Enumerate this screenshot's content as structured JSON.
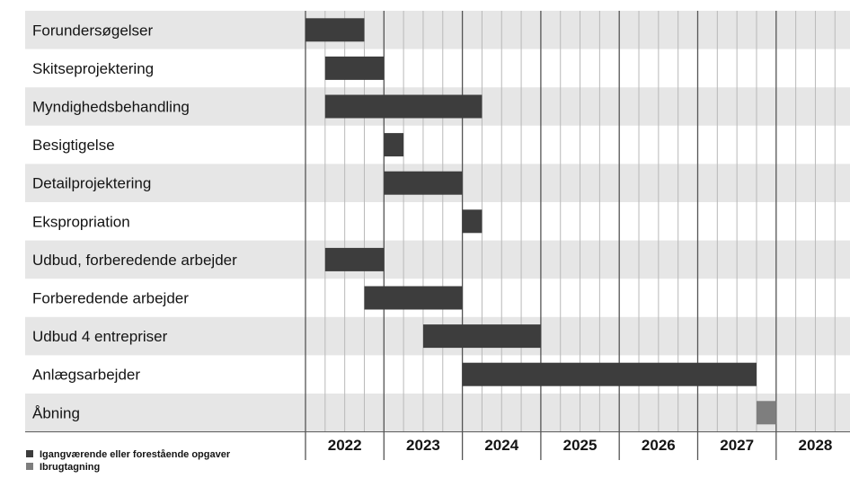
{
  "chart_data": {
    "type": "gantt",
    "years": [
      "2022",
      "2023",
      "2024",
      "2025",
      "2026",
      "2027",
      "2028"
    ],
    "tasks": [
      {
        "name": "Forundersøgelser",
        "start": 2022.0,
        "end": 2022.75,
        "kind": "current"
      },
      {
        "name": "Skitseprojektering",
        "start": 2022.25,
        "end": 2023.0,
        "kind": "current"
      },
      {
        "name": "Myndighedsbehandling",
        "start": 2022.25,
        "end": 2024.25,
        "kind": "current"
      },
      {
        "name": "Besigtigelse",
        "start": 2023.0,
        "end": 2023.25,
        "kind": "current"
      },
      {
        "name": "Detailprojektering",
        "start": 2023.0,
        "end": 2024.0,
        "kind": "current"
      },
      {
        "name": "Ekspropriation",
        "start": 2024.0,
        "end": 2024.25,
        "kind": "current"
      },
      {
        "name": "Udbud, forberedende arbejder",
        "start": 2022.25,
        "end": 2023.0,
        "kind": "current"
      },
      {
        "name": "Forberedende arbejder",
        "start": 2022.75,
        "end": 2024.0,
        "kind": "current"
      },
      {
        "name": "Udbud 4 entrepriser",
        "start": 2023.5,
        "end": 2025.0,
        "kind": "current"
      },
      {
        "name": "Anlægsarbejder",
        "start": 2024.0,
        "end": 2027.75,
        "kind": "current"
      },
      {
        "name": "Åbning",
        "start": 2027.75,
        "end": 2028.0,
        "kind": "opening"
      }
    ],
    "legend": [
      {
        "label": "Igangværende eller forestående opgaver",
        "color": "#3d3d3d"
      },
      {
        "label": "Ibrugtagning",
        "color": "#7e7e7e"
      }
    ],
    "colors": {
      "current": "#3d3d3d",
      "opening": "#7e7e7e",
      "stripe": "#e6e6e6",
      "grid": "#b9b9b9",
      "year_line": "#555555"
    }
  }
}
